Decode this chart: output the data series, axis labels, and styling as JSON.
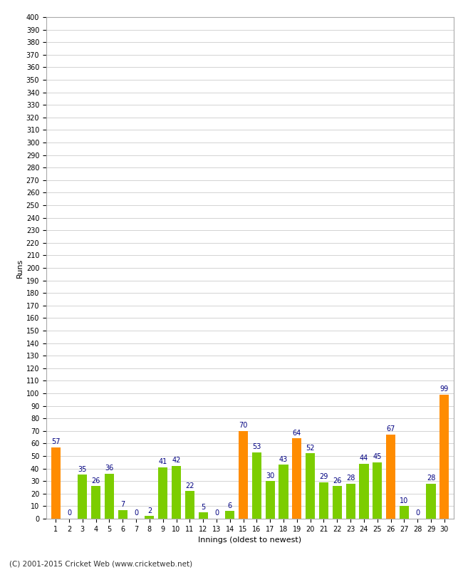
{
  "innings": [
    1,
    2,
    3,
    4,
    5,
    6,
    7,
    8,
    9,
    10,
    11,
    12,
    13,
    14,
    15,
    16,
    17,
    18,
    19,
    20,
    21,
    22,
    23,
    24,
    25,
    26,
    27,
    28,
    29,
    30
  ],
  "values": [
    57,
    0,
    35,
    26,
    36,
    7,
    0,
    2,
    41,
    42,
    22,
    5,
    0,
    6,
    70,
    53,
    30,
    43,
    64,
    52,
    29,
    26,
    28,
    44,
    45,
    67,
    10,
    0,
    28,
    99
  ],
  "colors": [
    "#ff8c00",
    "#7ccd00",
    "#7ccd00",
    "#7ccd00",
    "#7ccd00",
    "#7ccd00",
    "#7ccd00",
    "#7ccd00",
    "#7ccd00",
    "#7ccd00",
    "#7ccd00",
    "#7ccd00",
    "#7ccd00",
    "#7ccd00",
    "#ff8c00",
    "#7ccd00",
    "#7ccd00",
    "#7ccd00",
    "#ff8c00",
    "#7ccd00",
    "#7ccd00",
    "#7ccd00",
    "#7ccd00",
    "#7ccd00",
    "#7ccd00",
    "#ff8c00",
    "#7ccd00",
    "#7ccd00",
    "#7ccd00",
    "#ff8c00"
  ],
  "xlabel": "Innings (oldest to newest)",
  "ylabel": "Runs",
  "ylim": [
    0,
    400
  ],
  "yticks": [
    0,
    10,
    20,
    30,
    40,
    50,
    60,
    70,
    80,
    90,
    100,
    110,
    120,
    130,
    140,
    150,
    160,
    170,
    180,
    190,
    200,
    210,
    220,
    230,
    240,
    250,
    260,
    270,
    280,
    290,
    300,
    310,
    320,
    330,
    340,
    350,
    360,
    370,
    380,
    390,
    400
  ],
  "label_color": "#000080",
  "background_color": "#ffffff",
  "grid_color": "#cccccc",
  "footer": "(C) 2001-2015 Cricket Web (www.cricketweb.net)"
}
